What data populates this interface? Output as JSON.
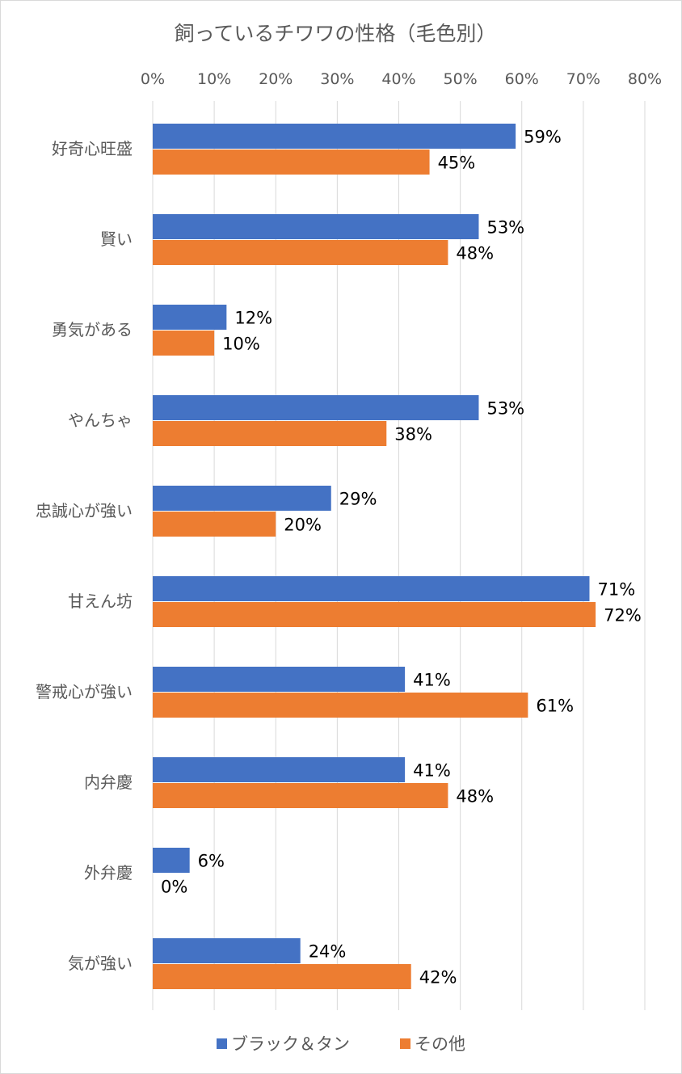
{
  "chart_data": {
    "type": "bar",
    "orientation": "horizontal",
    "title": "飼っているチワワの性格（毛色別）",
    "categories": [
      "好奇心旺盛",
      "賢い",
      "勇気がある",
      "やんちゃ",
      "忠誠心が強い",
      "甘えん坊",
      "警戒心が強い",
      "内弁慶",
      "外弁慶",
      "気が強い"
    ],
    "series": [
      {
        "name": "ブラック＆タン",
        "color": "#4472c4",
        "values": [
          59,
          53,
          12,
          53,
          29,
          71,
          41,
          41,
          6,
          24
        ]
      },
      {
        "name": "その他",
        "color": "#ed7d31",
        "values": [
          45,
          48,
          10,
          38,
          20,
          72,
          61,
          48,
          0,
          42
        ]
      }
    ],
    "xlim": [
      0,
      80
    ],
    "x_ticks": [
      "0%",
      "10%",
      "20%",
      "30%",
      "40%",
      "50%",
      "60%",
      "70%",
      "80%"
    ],
    "value_suffix": "%",
    "x_axis_position": "top",
    "grid": true,
    "legend": "bottom"
  }
}
